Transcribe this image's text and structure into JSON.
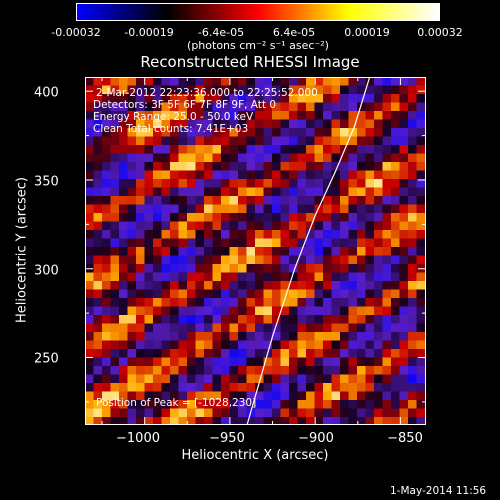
{
  "colorbar": {
    "ticks": [
      "-0.00032",
      "-0.00019",
      "-6.4e-05",
      "6.4e-05",
      "0.00019",
      "0.00032"
    ],
    "unit": "(photons cm⁻² s⁻¹ asec⁻²)",
    "colors": [
      "#0000ff",
      "#000000",
      "#ff0000",
      "#ffff00",
      "#ffffff"
    ]
  },
  "chart_data": {
    "type": "heatmap",
    "title": "Reconstructed RHESSI Image",
    "xlabel": "Heliocentric X (arcsec)",
    "ylabel": "Heliocentric Y (arcsec)",
    "xlim": [
      -1035,
      -835
    ],
    "ylim": [
      212,
      408
    ],
    "xticks": [
      "−1000",
      "−950",
      "−900",
      "−850"
    ],
    "xtick_values": [
      -1000,
      -950,
      -900,
      -850
    ],
    "yticks": [
      "250",
      "300",
      "350",
      "400"
    ],
    "ytick_values": [
      250,
      300,
      350,
      400
    ],
    "color_range": [
      -0.00032,
      0.00032
    ],
    "limb_curve": [
      [
        -940,
        212
      ],
      [
        -925,
        262
      ],
      [
        -912,
        300
      ],
      [
        -900,
        330
      ],
      [
        -888,
        355
      ],
      [
        -877,
        380
      ],
      [
        -868,
        408
      ]
    ],
    "annotations": [
      "2-Mar-2012 22:23:36.000 to 22:25:52.000",
      "Detectors: 3F 5F 6F 7F 8F 9F, Att 0",
      "Energy Range: 25.0 - 50.0 keV",
      "Clean     Total counts: 7.41E+03"
    ],
    "peak_label": "Position of Peak = [-1028,230]"
  },
  "footer": "1-May-2014 11:56"
}
